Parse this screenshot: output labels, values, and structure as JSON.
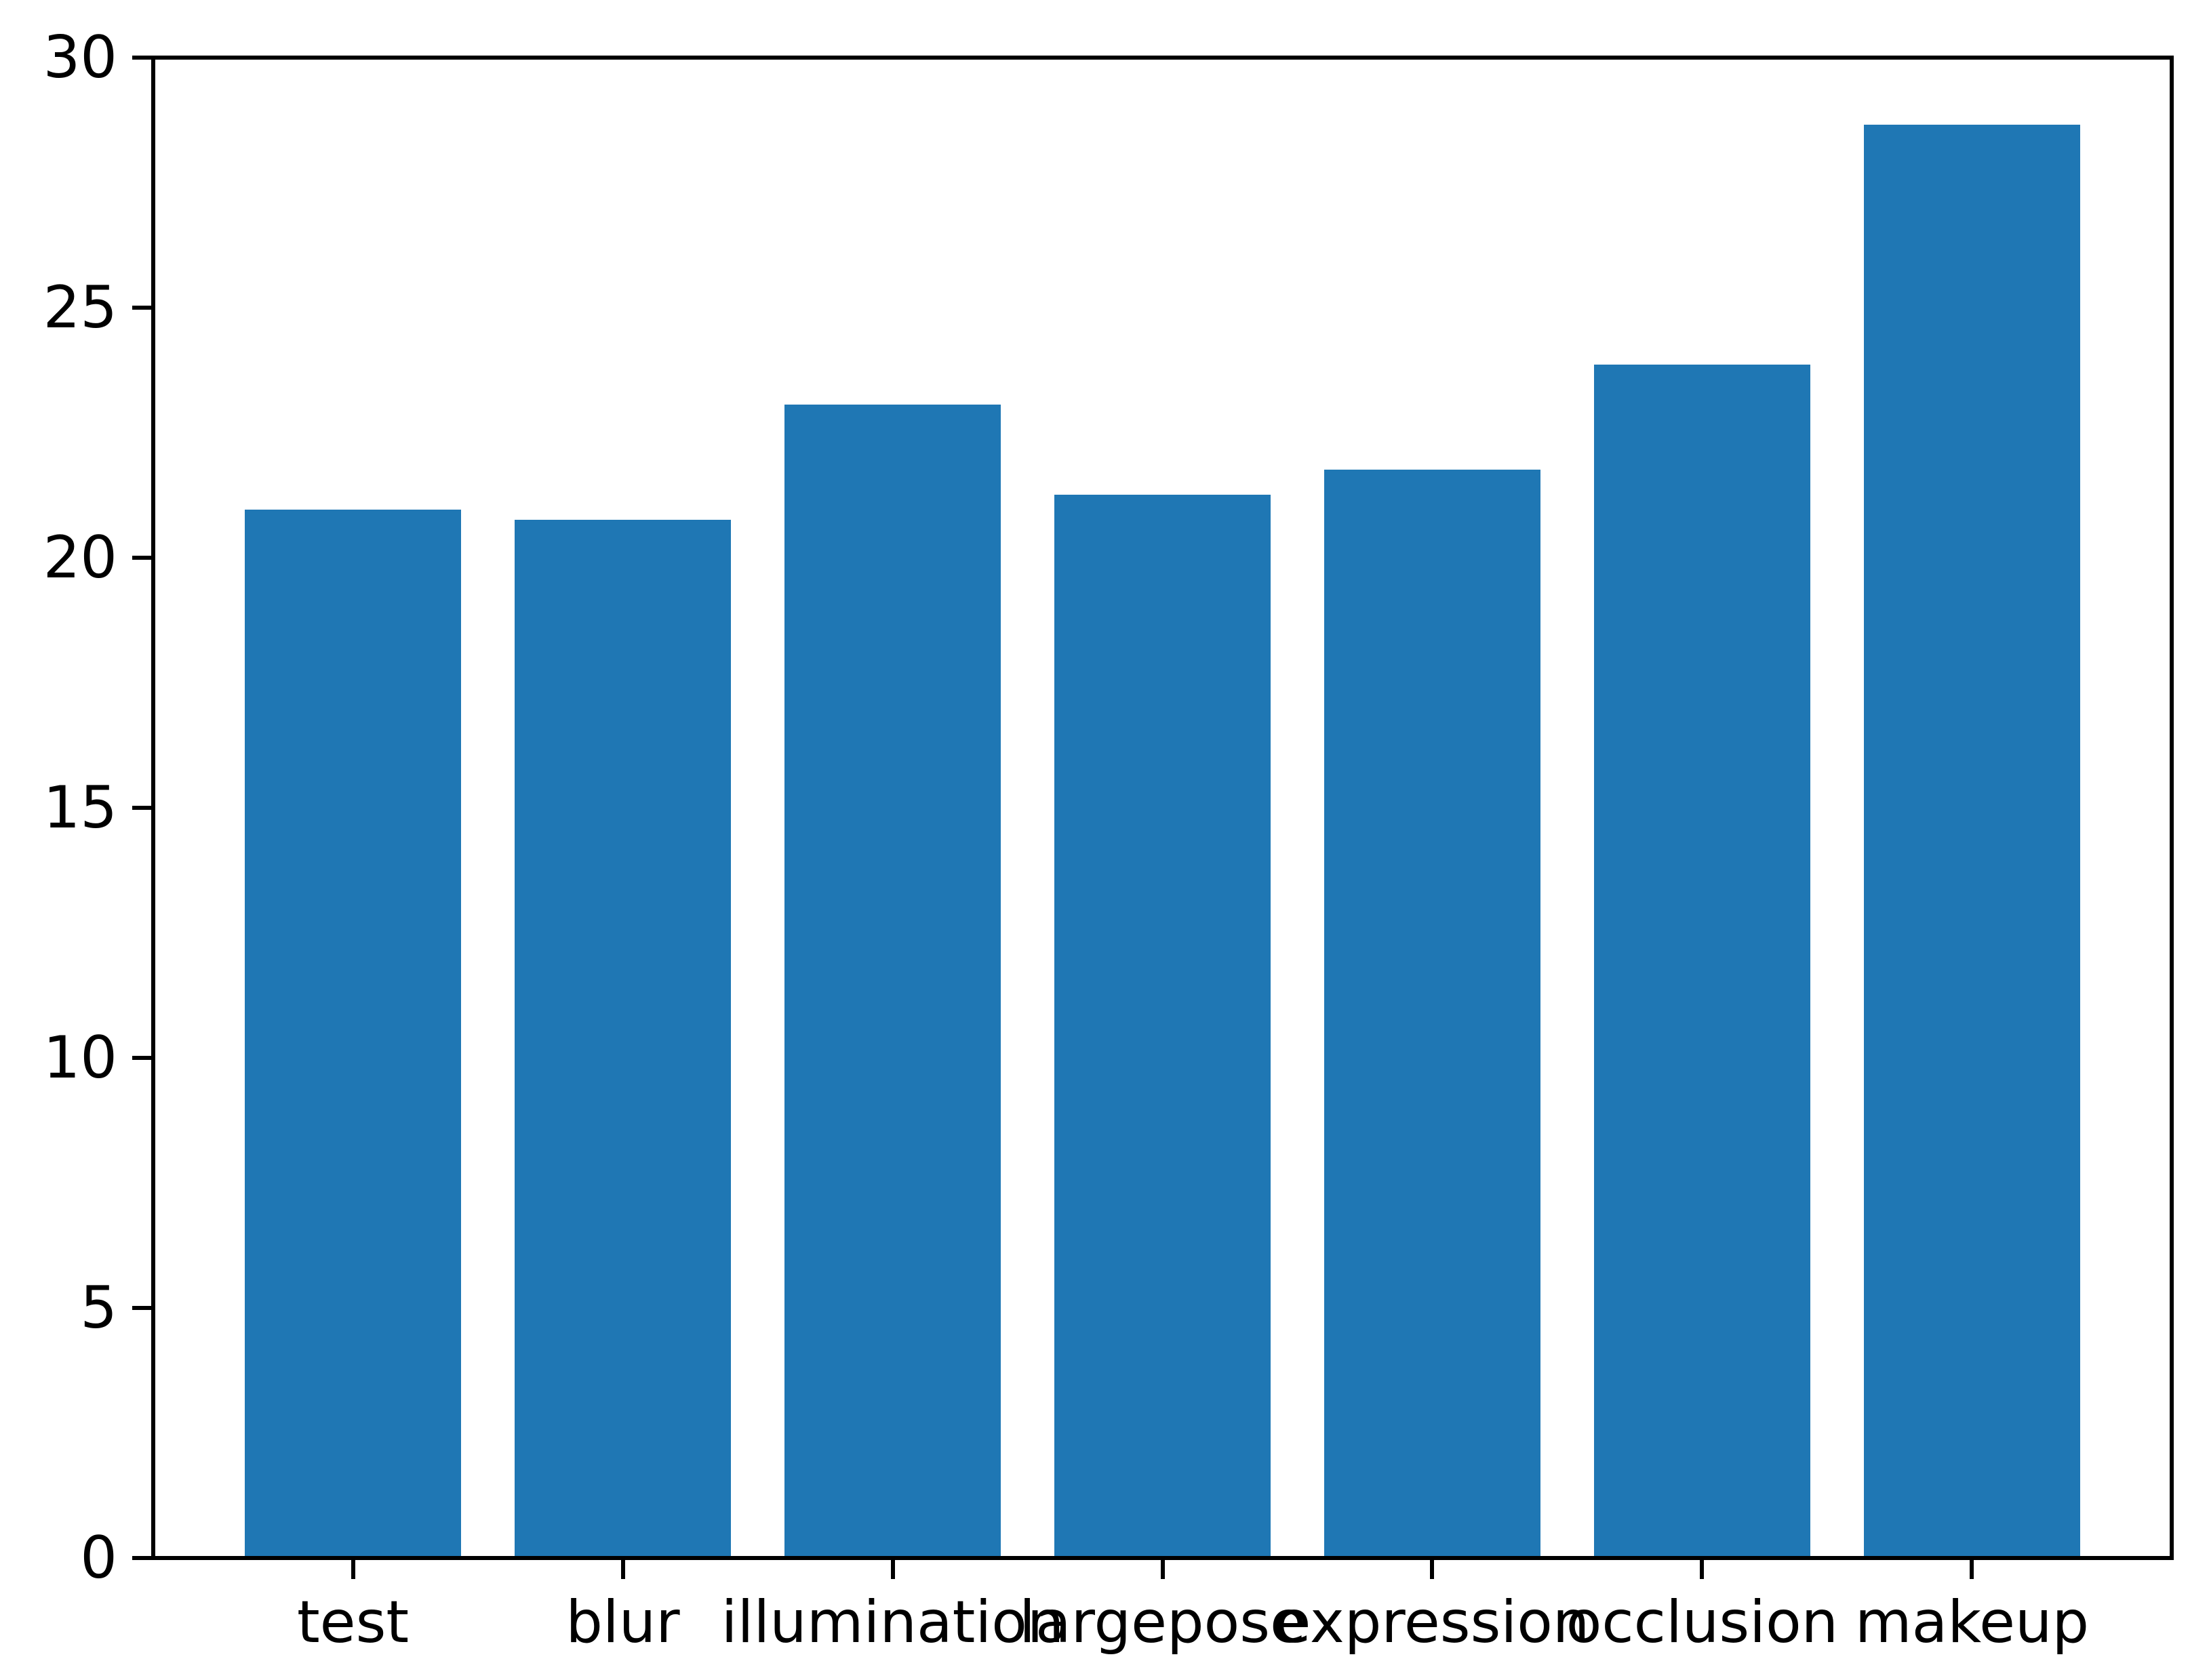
{
  "chart_data": {
    "type": "bar",
    "title": "",
    "xlabel": "",
    "ylabel": "",
    "categories": [
      "test",
      "blur",
      "illumination",
      "largepose",
      "expression",
      "occlusion",
      "makeup"
    ],
    "values": [
      21.0,
      20.8,
      23.1,
      21.3,
      21.8,
      23.9,
      28.7
    ],
    "ylim": [
      0,
      30
    ],
    "yticks": [
      0,
      5,
      10,
      15,
      20,
      25,
      30
    ],
    "grid": false,
    "legend": null,
    "bar_color": "#1f77b4",
    "axis_color": "#000000",
    "tick_label_color": "#000000",
    "background_color": "#ffffff"
  }
}
